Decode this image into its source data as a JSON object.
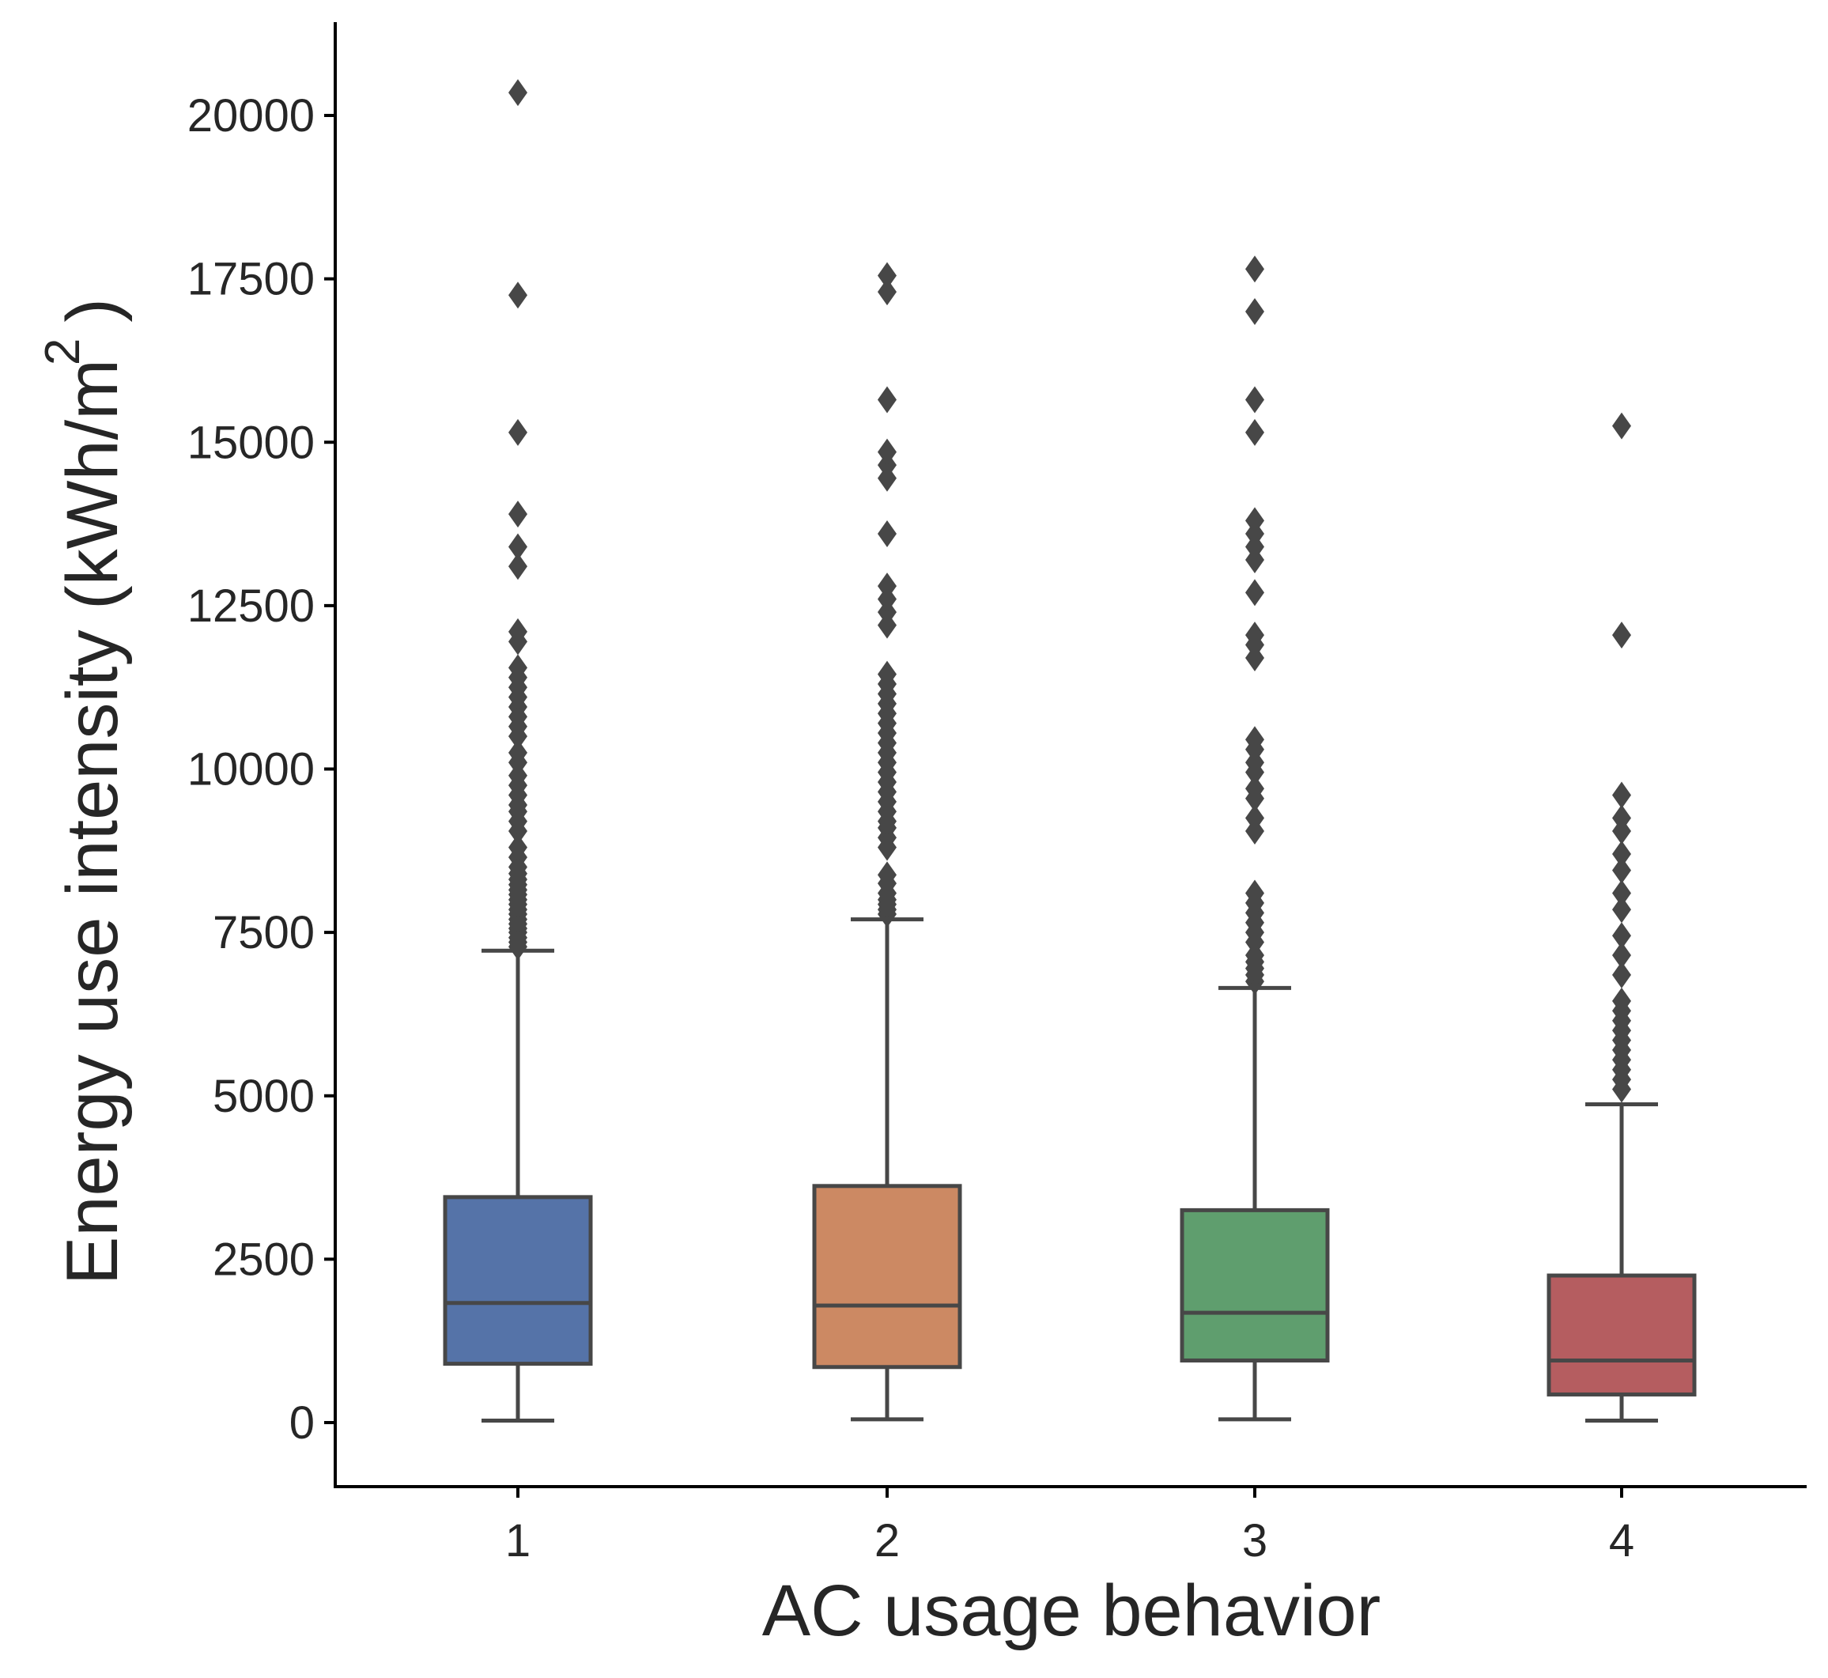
{
  "chart_data": {
    "type": "box",
    "xlabel": "AC usage behavior",
    "ylabel": "Energy use intensity (kWh/m",
    "ylabel_superscript": "2",
    "ylabel_close": ")",
    "ylim": [
      -1000,
      21400
    ],
    "yticks": [
      0,
      2500,
      5000,
      7500,
      10000,
      12500,
      15000,
      17500,
      20000
    ],
    "ytick_labels": [
      "0",
      "2500",
      "5000",
      "7500",
      "10000",
      "12500",
      "15000",
      "17500",
      "20000"
    ],
    "categories": [
      "1",
      "2",
      "3",
      "4"
    ],
    "colors": [
      "#5573a8",
      "#cc8963",
      "#5f9e6e",
      "#b55d60"
    ],
    "box_edge_color": "#474747",
    "boxes": [
      {
        "category": "1",
        "whisker_low": 30,
        "q1": 900,
        "median": 1830,
        "q3": 3450,
        "whisker_high": 7220,
        "outliers": [
          7280,
          7350,
          7420,
          7500,
          7560,
          7630,
          7700,
          7780,
          7850,
          7930,
          8000,
          8080,
          8150,
          8230,
          8310,
          8400,
          8500,
          8650,
          8800,
          9050,
          9200,
          9350,
          9450,
          9600,
          9750,
          9900,
          10100,
          10250,
          10500,
          10650,
          10800,
          10950,
          11100,
          11250,
          11400,
          11550,
          11950,
          12100,
          13100,
          13400,
          13900,
          15150,
          17250,
          20350
        ]
      },
      {
        "category": "2",
        "whisker_low": 50,
        "q1": 850,
        "median": 1790,
        "q3": 3620,
        "whisker_high": 7700,
        "outliers": [
          7780,
          7850,
          7930,
          8000,
          8100,
          8250,
          8380,
          8800,
          8950,
          9100,
          9200,
          9350,
          9500,
          9650,
          9800,
          9950,
          10100,
          10250,
          10400,
          10550,
          10700,
          10850,
          11000,
          11150,
          11300,
          11450,
          12200,
          12400,
          12600,
          12800,
          13600,
          14450,
          14650,
          14850,
          15650,
          17300,
          17550
        ]
      },
      {
        "category": "3",
        "whisker_low": 50,
        "q1": 950,
        "median": 1680,
        "q3": 3250,
        "whisker_high": 6650,
        "outliers": [
          6750,
          6850,
          6950,
          7050,
          7150,
          7350,
          7500,
          7650,
          7800,
          7950,
          8100,
          9050,
          9250,
          9550,
          9700,
          9950,
          10100,
          10300,
          10450,
          11700,
          11900,
          12050,
          12700,
          13200,
          13400,
          13600,
          13800,
          15150,
          15650,
          17000,
          17650
        ]
      },
      {
        "category": "4",
        "whisker_low": 30,
        "q1": 430,
        "median": 950,
        "q3": 2250,
        "whisker_high": 4870,
        "outliers": [
          5100,
          5250,
          5400,
          5550,
          5700,
          5850,
          6000,
          6150,
          6300,
          6450,
          6850,
          7150,
          7450,
          7850,
          8100,
          8450,
          8700,
          9050,
          9250,
          9600,
          12050,
          15250
        ]
      }
    ]
  }
}
